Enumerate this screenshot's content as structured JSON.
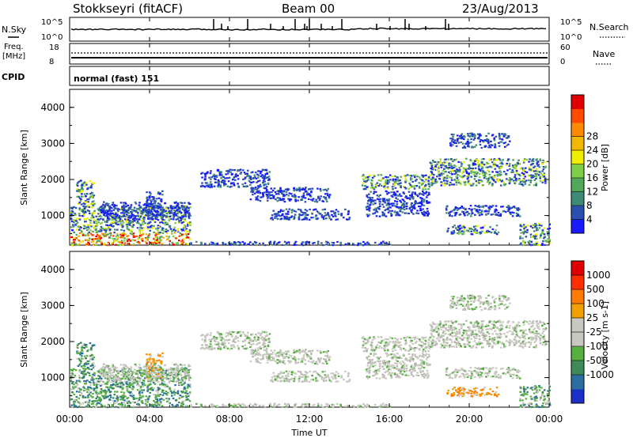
{
  "header": {
    "station": "Stokkseyri (fitACF)",
    "beam": "Beam 00",
    "date": "23/Aug/2013"
  },
  "left_labels": {
    "nsky": "N.Sky",
    "freq_line1": "Freq.",
    "freq_line2": "[MHz]",
    "cpid": "CPID"
  },
  "right_labels": {
    "nsearch": "N.Search",
    "nave": "Nave"
  },
  "cpid_text": "normal (fast) 151",
  "nsky_ticks": [
    "10^5",
    "10^0"
  ],
  "nsearch_ticks": [
    "10^5",
    "10^0"
  ],
  "freq_ticks": [
    "18",
    "8"
  ],
  "nave_ticks": [
    "60",
    "0"
  ],
  "x_tick_labels": [
    "00:00",
    "04:00",
    "08:00",
    "12:00",
    "16:00",
    "20:00",
    "00:00"
  ],
  "x_axis_label": "Time UT",
  "range_axis_label": "Slant Range [km]",
  "range_tick_labels": [
    "1000",
    "2000",
    "3000",
    "4000"
  ],
  "power_colorbar": {
    "label": "Power [dB]",
    "tick_labels": [
      "4",
      "8",
      "12",
      "16",
      "20",
      "24",
      "28"
    ],
    "colors": [
      "#1a1aff",
      "#2b4fb0",
      "#3f8a76",
      "#52a85a",
      "#7fd046",
      "#f0ee00",
      "#f2b800",
      "#ff8a00",
      "#ff4a00",
      "#e00000"
    ]
  },
  "velocity_colorbar": {
    "label": "Velocity [m s-1]",
    "tick_labels": [
      "1000",
      "500",
      "100",
      "25",
      "-25",
      "-100",
      "-500",
      "-1000"
    ],
    "colors": [
      "#1a2fc8",
      "#2a6fa0",
      "#3f8a5a",
      "#56b040",
      "#c8c8c0",
      "#c8c8c0",
      "#f0a000",
      "#ff7a00",
      "#ff3000",
      "#e00000"
    ]
  },
  "chart_data": {
    "type": "heatmap",
    "panels": [
      "power",
      "velocity"
    ],
    "x_range_hours": [
      0,
      24
    ],
    "y_range_km": [
      180,
      4500
    ],
    "regions": [
      {
        "t0": 0.0,
        "t1": 6.0,
        "r0": 200,
        "r1": 550,
        "pwr": "strong",
        "vel": "green"
      },
      {
        "t0": 0.0,
        "t1": 6.0,
        "r0": 550,
        "r1": 1300,
        "pwr": "medium",
        "vel": "green"
      },
      {
        "t0": 0.3,
        "t1": 1.2,
        "r0": 1300,
        "r1": 2000,
        "pwr": "medium",
        "vel": "green"
      },
      {
        "t0": 3.8,
        "t1": 4.6,
        "r0": 1000,
        "r1": 1700,
        "pwr": "weak",
        "vel": "orange"
      },
      {
        "t0": 1.5,
        "t1": 6.0,
        "r0": 900,
        "r1": 1400,
        "pwr": "weak",
        "vel": "grey"
      },
      {
        "t0": 6.5,
        "t1": 10.0,
        "r0": 1800,
        "r1": 2300,
        "pwr": "weak",
        "vel": "grey"
      },
      {
        "t0": 9.0,
        "t1": 13.0,
        "r0": 1400,
        "r1": 1800,
        "pwr": "weak",
        "vel": "grey"
      },
      {
        "t0": 10.0,
        "t1": 14.0,
        "r0": 900,
        "r1": 1200,
        "pwr": "weak",
        "vel": "grey"
      },
      {
        "t0": 6.0,
        "t1": 16.0,
        "r0": 200,
        "r1": 300,
        "pwr": "weak",
        "vel": "grey"
      },
      {
        "t0": 14.6,
        "t1": 18.0,
        "r0": 1750,
        "r1": 2150,
        "pwr": "medium",
        "vel": "grey"
      },
      {
        "t0": 18.0,
        "t1": 23.8,
        "r0": 1850,
        "r1": 2600,
        "pwr": "medium",
        "vel": "grey"
      },
      {
        "t0": 19.0,
        "t1": 22.0,
        "r0": 2900,
        "r1": 3300,
        "pwr": "weak",
        "vel": "grey"
      },
      {
        "t0": 18.8,
        "t1": 21.5,
        "r0": 500,
        "r1": 750,
        "pwr": "medium",
        "vel": "orange"
      },
      {
        "t0": 18.8,
        "t1": 22.5,
        "r0": 1000,
        "r1": 1300,
        "pwr": "weak",
        "vel": "grey"
      },
      {
        "t0": 14.8,
        "t1": 18.0,
        "r0": 1000,
        "r1": 1700,
        "pwr": "weak",
        "vel": "grey"
      },
      {
        "t0": 22.5,
        "t1": 24.0,
        "r0": 200,
        "r1": 800,
        "pwr": "medium",
        "vel": "green"
      }
    ]
  }
}
